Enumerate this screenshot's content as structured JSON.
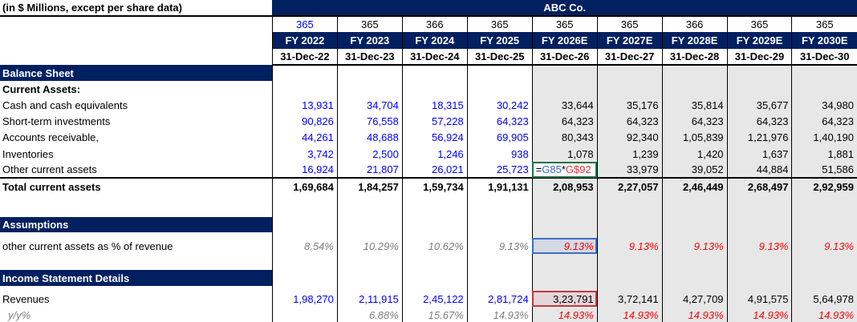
{
  "title": "(in $ Millions, except per share data)",
  "company": "ABC Co.",
  "days": [
    "365",
    "365",
    "366",
    "365",
    "365",
    "365",
    "366",
    "365",
    "365"
  ],
  "fiscal_years": [
    "FY 2022",
    "FY 2023",
    "FY 2024",
    "FY 2025",
    "FY 2026E",
    "FY 2027E",
    "FY 2028E",
    "FY 2029E",
    "FY 2030E"
  ],
  "dates": [
    "31-Dec-22",
    "31-Dec-23",
    "31-Dec-24",
    "31-Dec-25",
    "31-Dec-26",
    "31-Dec-27",
    "31-Dec-28",
    "31-Dec-29",
    "31-Dec-30"
  ],
  "sections": {
    "balance_sheet": "Balance Sheet",
    "current_assets": "Current Assets:",
    "assumptions": "Assumptions",
    "income": "Income Statement Details"
  },
  "rows": [
    {
      "label": "Cash and cash equivalents",
      "values": [
        "13,931",
        "34,704",
        "18,315",
        "30,242",
        "33,644",
        "35,176",
        "35,814",
        "35,677",
        "34,980"
      ]
    },
    {
      "label": "Short-term investments",
      "values": [
        "90,826",
        "76,558",
        "57,228",
        "64,323",
        "64,323",
        "64,323",
        "64,323",
        "64,323",
        "64,323"
      ]
    },
    {
      "label": "Accounts receivable,",
      "values": [
        "44,261",
        "48,688",
        "56,924",
        "69,905",
        "80,343",
        "92,340",
        "1,05,839",
        "1,21,976",
        "1,40,190"
      ]
    },
    {
      "label": "Inventories",
      "values": [
        "3,742",
        "2,500",
        "1,246",
        "938",
        "1,078",
        "1,239",
        "1,420",
        "1,637",
        "1,881"
      ]
    },
    {
      "label": "Other current assets",
      "values": [
        "16,924",
        "21,807",
        "26,021",
        "25,723",
        "=G85*G$92",
        "33,979",
        "39,052",
        "44,884",
        "51,586"
      ]
    }
  ],
  "total": {
    "label": "Total current assets",
    "values": [
      "1,69,684",
      "1,84,257",
      "1,59,734",
      "1,91,131",
      "2,08,953",
      "2,27,057",
      "2,46,449",
      "2,68,497",
      "2,92,959"
    ]
  },
  "assumption_row": {
    "label": "other current assets as % of revenue",
    "values": [
      "8.54%",
      "10.29%",
      "10.62%",
      "9.13%",
      "9.13%",
      "9.13%",
      "9.13%",
      "9.13%",
      "9.13%"
    ]
  },
  "revenues": {
    "label": "Revenues",
    "values": [
      "1,98,270",
      "2,11,915",
      "2,45,122",
      "2,81,724",
      "3,23,791",
      "3,72,141",
      "4,27,709",
      "4,91,575",
      "5,64,978"
    ]
  },
  "yoy": {
    "label": "y/y%",
    "values": [
      "",
      "6.88%",
      "15.67%",
      "14.93%",
      "14.93%",
      "14.93%",
      "14.93%",
      "14.93%",
      "14.93%"
    ]
  },
  "formula": {
    "eq": "=",
    "ref1": "G85",
    "op": "*",
    "ref2": "G$92"
  },
  "colors": {
    "navy": "#002060",
    "input_blue": "#0000ff",
    "forecast_red": "#ff0000",
    "forecast_bg": "#e7e7e7"
  }
}
